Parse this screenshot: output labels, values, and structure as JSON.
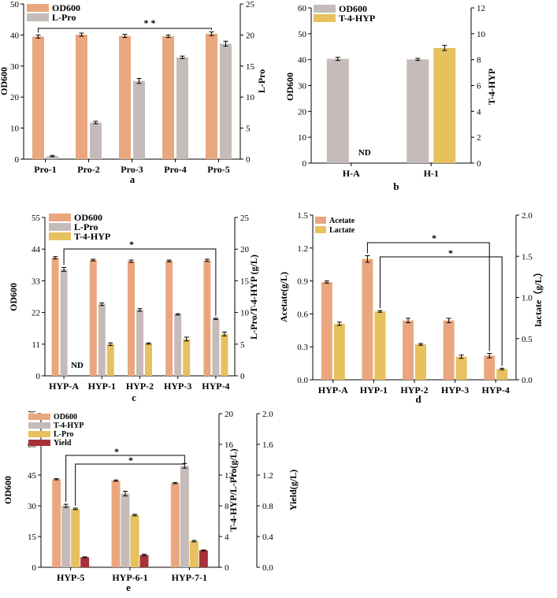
{
  "colors": {
    "od": "#eaa77f",
    "grey": "#c5bbb8",
    "gold": "#e6c15e",
    "yield": "#a8323a",
    "axis": "#000000"
  },
  "chart_data": [
    {
      "id": "a",
      "type": "bar",
      "panel_label": "a",
      "categories": [
        "Pro-1",
        "Pro-2",
        "Pro-3",
        "Pro-4",
        "Pro-5"
      ],
      "ylabel_left": "OD600",
      "ylim_left": [
        0,
        50
      ],
      "yticks_left": [
        0,
        10,
        20,
        30,
        40,
        50
      ],
      "ylabel_right": "L-Pro",
      "ylim_right": [
        0,
        25
      ],
      "yticks_right": [
        0,
        5,
        10,
        15,
        20,
        25
      ],
      "series": [
        {
          "name": "OD600",
          "axis": "left",
          "color": "od",
          "values": [
            39.5,
            40.1,
            39.7,
            39.6,
            40.4
          ],
          "errors": [
            0.5,
            0.5,
            0.5,
            0.4,
            0.6
          ]
        },
        {
          "name": "L-Pro",
          "axis": "right",
          "color": "grey",
          "values": [
            0.5,
            5.9,
            12.6,
            16.4,
            18.6
          ],
          "errors": [
            0.1,
            0.2,
            0.4,
            0.2,
            0.4
          ]
        }
      ],
      "annotations": [
        {
          "text": "* *",
          "from": 0,
          "to": 4
        }
      ],
      "nd": []
    },
    {
      "id": "b",
      "type": "bar",
      "panel_label": "b",
      "categories": [
        "H-A",
        "H-1"
      ],
      "ylabel_left": "OD600",
      "ylim_left": [
        0,
        60
      ],
      "yticks_left": [
        0,
        10,
        20,
        30,
        40,
        50,
        60
      ],
      "ylabel_right": "T-4-HYP",
      "ylim_right": [
        0,
        12
      ],
      "yticks_right": [
        0,
        2,
        4,
        6,
        8,
        10,
        12
      ],
      "series": [
        {
          "name": "OD600",
          "axis": "left",
          "color": "grey",
          "values": [
            40.3,
            40.1
          ],
          "errors": [
            0.6,
            0.4
          ]
        },
        {
          "name": "T-4-HYP",
          "axis": "right",
          "color": "gold",
          "values": [
            0,
            8.9
          ],
          "errors": [
            0,
            0.2
          ]
        }
      ],
      "annotations": [],
      "nd": [
        {
          "text": "ND",
          "category": 0,
          "series": 1
        }
      ]
    },
    {
      "id": "c",
      "type": "bar",
      "panel_label": "c",
      "categories": [
        "HYP-A",
        "HYP-1",
        "HYP-2",
        "HYP-3",
        "HYP-4"
      ],
      "ylabel_left": "OD600",
      "ylim_left": [
        0,
        55
      ],
      "yticks_left": [
        0,
        11,
        22,
        33,
        44,
        55
      ],
      "ylabel_right": "L-Pro/T-4-HYP (g/L)",
      "ylim_right": [
        0,
        25
      ],
      "yticks_right": [
        0,
        5,
        10,
        15,
        20,
        25
      ],
      "series": [
        {
          "name": "OD600",
          "axis": "left",
          "color": "od",
          "values": [
            41.0,
            40.2,
            39.8,
            39.9,
            40.1
          ],
          "errors": [
            0.4,
            0.3,
            0.4,
            0.3,
            0.4
          ]
        },
        {
          "name": "L-Pro",
          "axis": "right",
          "color": "grey",
          "values": [
            16.8,
            11.3,
            10.4,
            9.7,
            9.0
          ],
          "errors": [
            0.3,
            0.2,
            0.2,
            0.1,
            0.1
          ]
        },
        {
          "name": "T-4-HYP",
          "axis": "right",
          "color": "gold",
          "values": [
            0,
            5.0,
            5.1,
            5.8,
            6.6
          ],
          "errors": [
            0,
            0.2,
            0.1,
            0.3,
            0.3
          ]
        }
      ],
      "annotations": [
        {
          "text": "*",
          "from": 0,
          "to": 4
        }
      ],
      "nd": [
        {
          "text": "ND",
          "category": 0,
          "series": 2
        }
      ]
    },
    {
      "id": "d",
      "type": "bar",
      "panel_label": "d",
      "categories": [
        "HYP-A",
        "HYP-1",
        "HYP-2",
        "HYP-3",
        "HYP-4"
      ],
      "ylabel_left": "Acetate(g/L)",
      "ylim_left": [
        0,
        1.5
      ],
      "yticks_left": [
        "0.0",
        "0.3",
        "0.6",
        "0.9",
        "1.2",
        "1.5"
      ],
      "ylabel_right": "lactate（g/L）",
      "ylim_right": [
        0,
        2.0
      ],
      "yticks_right": [
        "0.0",
        "0.5",
        "1.0",
        "1.5",
        "2.0"
      ],
      "series": [
        {
          "name": "Acetate",
          "axis": "left",
          "color": "od",
          "values": [
            0.89,
            1.1,
            0.54,
            0.54,
            0.22
          ],
          "errors": [
            0.01,
            0.03,
            0.02,
            0.02,
            0.02
          ]
        },
        {
          "name": "Lactate",
          "axis": "right",
          "color": "gold",
          "values": [
            0.68,
            0.83,
            0.43,
            0.28,
            0.13
          ],
          "errors": [
            0.02,
            0.01,
            0.01,
            0.02,
            0.01
          ]
        }
      ],
      "annotations": [
        {
          "text": "*",
          "from": 1,
          "to": 4
        },
        {
          "text": "*",
          "from": 1,
          "to": 4
        }
      ],
      "nd": []
    },
    {
      "id": "e",
      "type": "bar",
      "panel_label": "e",
      "categories": [
        "HYP-5",
        "HYP-6-1",
        "HYP-7-1"
      ],
      "ylabel_left": "OD600",
      "ylim_left": [
        0,
        75
      ],
      "yticks_left": [
        0,
        15,
        30,
        45,
        60,
        75
      ],
      "ylabel_right": "T-4-HYP/L-Pro(g/L)",
      "ylim_right": [
        0,
        20
      ],
      "yticks_right": [
        0,
        4,
        8,
        12,
        16,
        20
      ],
      "ylabel_right2": "Yield(g/L)",
      "ylim_right2": [
        0,
        2.0
      ],
      "yticks_right2": [
        "0.0",
        "0.4",
        "0.8",
        "1.2",
        "1.6",
        "2.0"
      ],
      "series": [
        {
          "name": "OD600",
          "axis": "left",
          "color": "od",
          "values": [
            43.0,
            42.3,
            41.1
          ],
          "errors": [
            0.3,
            0.3,
            0.3
          ]
        },
        {
          "name": "T-4-HYP",
          "axis": "right",
          "color": "grey",
          "values": [
            8.0,
            9.6,
            13.2
          ],
          "errors": [
            0.2,
            0.3,
            0.3
          ]
        },
        {
          "name": "L-Pro",
          "axis": "right",
          "color": "gold",
          "values": [
            7.6,
            6.8,
            3.4
          ],
          "errors": [
            0.1,
            0.1,
            0.1
          ]
        },
        {
          "name": "Yield",
          "axis": "right2",
          "color": "yield",
          "values": [
            0.13,
            0.16,
            0.22
          ],
          "errors": [
            0.005,
            0.01,
            0.005
          ]
        }
      ],
      "annotations": [
        {
          "text": "*",
          "from": 0,
          "to": 2
        },
        {
          "text": "*",
          "from": 0,
          "to": 2
        }
      ],
      "nd": []
    }
  ]
}
